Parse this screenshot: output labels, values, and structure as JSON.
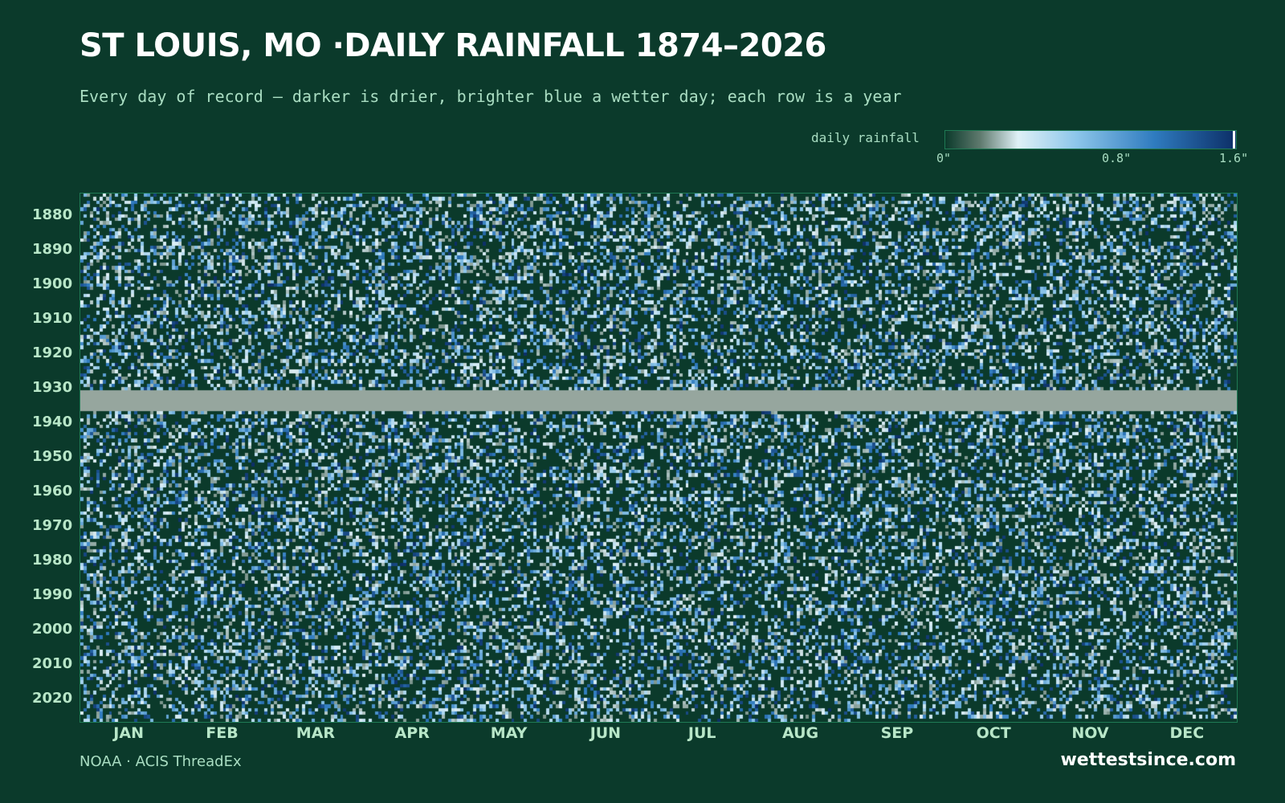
{
  "title": "ST LOUIS, MO ·DAILY RAINFALL 1874–2026",
  "subtitle": "Every day of record — darker is drier, brighter blue a wetter day; each row is a year",
  "legend": {
    "label": "daily rainfall",
    "ticks": [
      "0\"",
      "0.8\"",
      "1.6\""
    ]
  },
  "footer": {
    "source": "NOAA · ACIS ThreadEx",
    "brand": "wettestsince.com"
  },
  "colors": {
    "background": "#0b3a2b",
    "missing": "#96a69e",
    "scale": [
      "#0b3a2b",
      "#5f7a6e",
      "#dff0f6",
      "#8dc6ea",
      "#2f7bbf",
      "#0c2e66"
    ]
  },
  "chart_data": {
    "type": "heatmap",
    "title": "ST LOUIS, MO ·DAILY RAINFALL 1874–2026",
    "y_start": 1874,
    "y_end": 2026,
    "y_ticks": [
      1880,
      1890,
      1900,
      1910,
      1920,
      1930,
      1940,
      1950,
      1960,
      1970,
      1980,
      1990,
      2000,
      2010,
      2020
    ],
    "x_labels": [
      "JAN",
      "FEB",
      "MAR",
      "APR",
      "MAY",
      "JUN",
      "JUL",
      "AUG",
      "SEP",
      "OCT",
      "NOV",
      "DEC"
    ],
    "value_range": [
      0,
      1.6
    ],
    "units": "in",
    "missing_years": [
      1931,
      1932,
      1933,
      1934,
      1935,
      1936
    ],
    "partial_last_year_through": "AUG",
    "grid": false,
    "legend_position": "top-right"
  }
}
